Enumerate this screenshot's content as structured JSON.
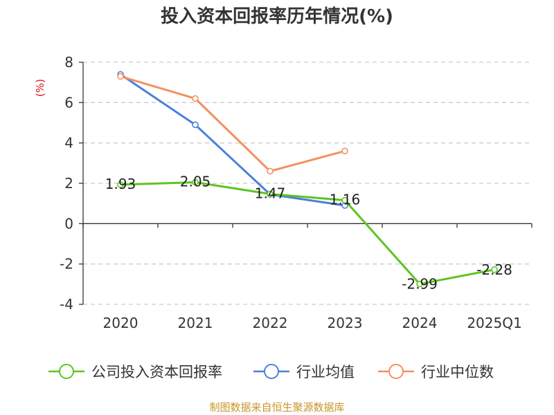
{
  "title": "投入资本回报率历年情况(%)",
  "unit_label": "(%)",
  "source": "制图数据来自恒生聚源数据库",
  "chart_data": {
    "type": "line",
    "title": "投入资本回报率历年情况(%)",
    "categories": [
      "2020",
      "2021",
      "2022",
      "2023",
      "2024",
      "2025Q1"
    ],
    "yticks": [
      "8",
      "6",
      "4",
      "2",
      "0",
      "-2",
      "-4"
    ],
    "ylim": [
      -4,
      8
    ],
    "ylabel": "(%)",
    "grid": true,
    "legend_position": "bottom",
    "series": [
      {
        "name": "公司投入资本回报率",
        "color": "#5cc51e",
        "values": [
          1.93,
          2.05,
          1.47,
          1.16,
          -2.99,
          -2.28
        ],
        "labels": [
          "1.93",
          "2.05",
          "1.47",
          "1.16",
          "-2.99",
          "-2.28"
        ]
      },
      {
        "name": "行业均值",
        "color": "#4b7fdc",
        "values": [
          7.4,
          4.9,
          1.45,
          0.9,
          null,
          null
        ]
      },
      {
        "name": "行业中位数",
        "color": "#f49060",
        "values": [
          7.3,
          6.2,
          2.6,
          3.6,
          null,
          null
        ]
      }
    ]
  }
}
